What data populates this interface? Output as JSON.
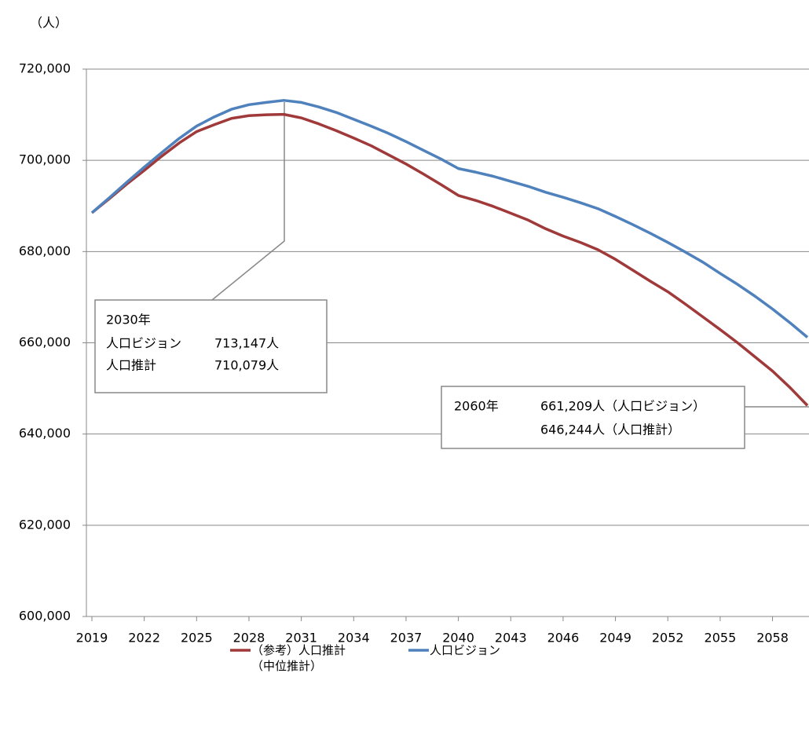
{
  "chart_data": {
    "type": "line",
    "unit_label": "（人）",
    "x": [
      2019,
      2020,
      2021,
      2022,
      2023,
      2024,
      2025,
      2026,
      2027,
      2028,
      2029,
      2030,
      2031,
      2032,
      2033,
      2034,
      2035,
      2036,
      2037,
      2038,
      2039,
      2040,
      2041,
      2042,
      2043,
      2044,
      2045,
      2046,
      2047,
      2048,
      2049,
      2050,
      2051,
      2052,
      2053,
      2054,
      2055,
      2056,
      2057,
      2058,
      2059,
      2060
    ],
    "xlim": [
      2019,
      2060
    ],
    "xticks": [
      2019,
      2022,
      2025,
      2028,
      2031,
      2034,
      2037,
      2040,
      2043,
      2046,
      2049,
      2052,
      2055,
      2058
    ],
    "ylim": [
      600000,
      720000
    ],
    "yticks": [
      {
        "value": 600000,
        "label": "600,000"
      },
      {
        "value": 620000,
        "label": "620,000"
      },
      {
        "value": 640000,
        "label": "640,000"
      },
      {
        "value": 660000,
        "label": "660,000"
      },
      {
        "value": 680000,
        "label": "680,000"
      },
      {
        "value": 700000,
        "label": "700,000"
      },
      {
        "value": 720000,
        "label": "720,000"
      }
    ],
    "grid": true,
    "series": [
      {
        "name": "（参考）人口推計\n（中位推計）",
        "color": "#a0393a",
        "values": [
          688500,
          691600,
          694800,
          697800,
          700900,
          703800,
          706300,
          707800,
          709200,
          709800,
          710000,
          710079,
          709300,
          708000,
          706500,
          704900,
          703200,
          701200,
          699200,
          697000,
          694700,
          692300,
          691200,
          689900,
          688400,
          686900,
          685000,
          683400,
          682000,
          680400,
          678300,
          675900,
          673500,
          671200,
          668500,
          665700,
          662900,
          660000,
          656900,
          653800,
          650200,
          646244
        ]
      },
      {
        "name": "人口ビジョン",
        "color": "#4f81bd",
        "values": [
          688500,
          691800,
          695200,
          698500,
          701700,
          704800,
          707500,
          709500,
          711200,
          712200,
          712700,
          713147,
          712700,
          711700,
          710500,
          709000,
          707500,
          705900,
          704100,
          702200,
          700300,
          698200,
          697400,
          696500,
          695400,
          694300,
          693000,
          691900,
          690700,
          689400,
          687700,
          685900,
          684000,
          682000,
          679900,
          677700,
          675200,
          672800,
          670200,
          667400,
          664400,
          661209
        ]
      }
    ],
    "annotations": [
      {
        "rows": [
          [
            "2030年"
          ],
          [
            "人口ビジョン",
            "713,147人"
          ],
          [
            "人口推計",
            "710,079人"
          ]
        ]
      },
      {
        "rows": [
          [
            "2060年",
            "661,209人（人口ビジョン）"
          ],
          [
            "646,244人（人口推計）"
          ]
        ]
      }
    ]
  }
}
